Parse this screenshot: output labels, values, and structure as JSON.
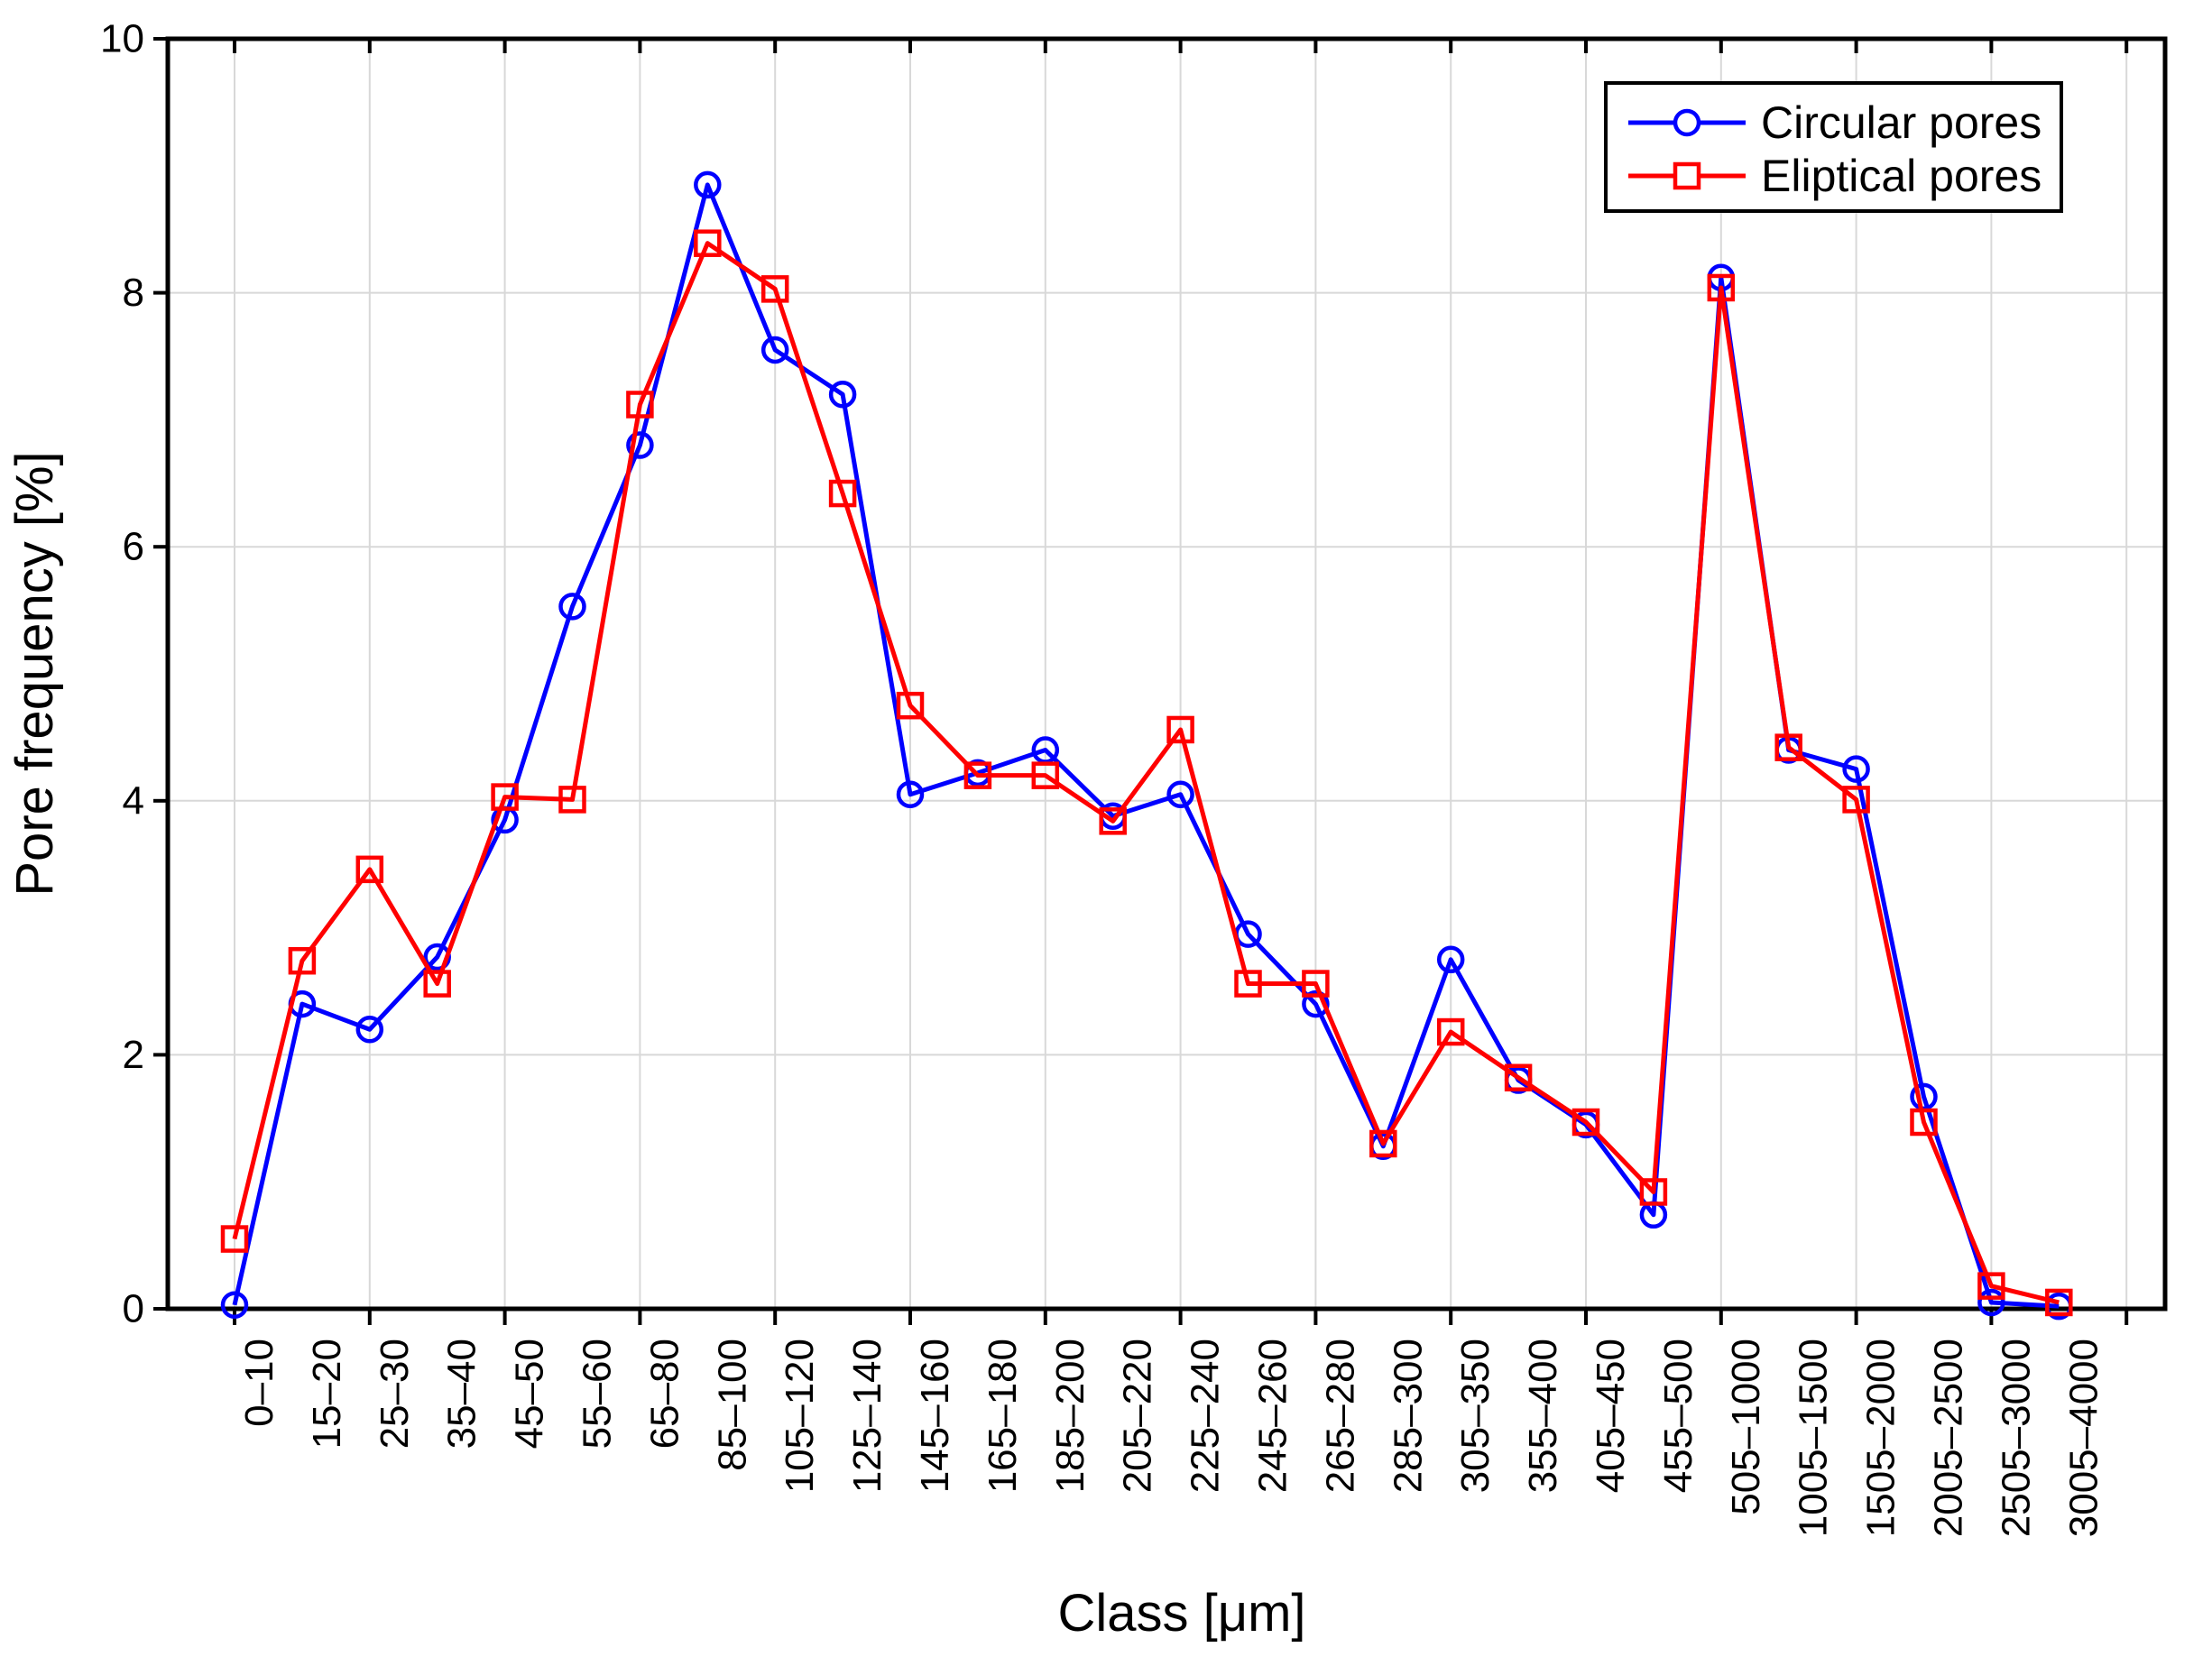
{
  "chart_data": {
    "type": "line",
    "title": "",
    "xlabel": "Class [μm]",
    "ylabel": "Pore frequency [%]",
    "ylim": [
      0,
      10
    ],
    "yticks": [
      0,
      2,
      4,
      6,
      8,
      10
    ],
    "grid": true,
    "legend_position": "top-right",
    "frame_color": "#000000",
    "gridline_color": "#d8d8d8",
    "background_color": "#ffffff",
    "categories": [
      "0–10",
      "15–20",
      "25–30",
      "35–40",
      "45–50",
      "55–60",
      "65–80",
      "85–100",
      "105–120",
      "125–140",
      "145–160",
      "165–180",
      "185–200",
      "205–220",
      "225–240",
      "245–260",
      "265–280",
      "285–300",
      "305–350",
      "355–400",
      "405–450",
      "455–500",
      "505–1000",
      "1005–1500",
      "1505–2000",
      "2005–2500",
      "2505–3000",
      "3005–4000"
    ],
    "series": [
      {
        "name": "Circular pores",
        "color": "#0000ff",
        "marker": "circle",
        "values": [
          0.03,
          2.4,
          2.2,
          2.77,
          3.85,
          5.53,
          6.8,
          8.85,
          7.55,
          7.2,
          4.05,
          4.22,
          4.4,
          3.88,
          4.05,
          2.95,
          2.4,
          1.28,
          2.75,
          1.8,
          1.45,
          0.74,
          8.12,
          4.4,
          4.25,
          1.67,
          0.05,
          0.02
        ]
      },
      {
        "name": "Eliptical pores",
        "color": "#ff0000",
        "marker": "square",
        "values": [
          0.55,
          2.74,
          3.46,
          2.56,
          4.03,
          4.01,
          7.12,
          8.39,
          8.03,
          6.42,
          4.75,
          4.2,
          4.2,
          3.84,
          4.56,
          2.56,
          2.56,
          1.3,
          2.18,
          1.82,
          1.47,
          0.92,
          8.04,
          4.42,
          4.01,
          1.47,
          0.18,
          0.05
        ]
      }
    ]
  }
}
